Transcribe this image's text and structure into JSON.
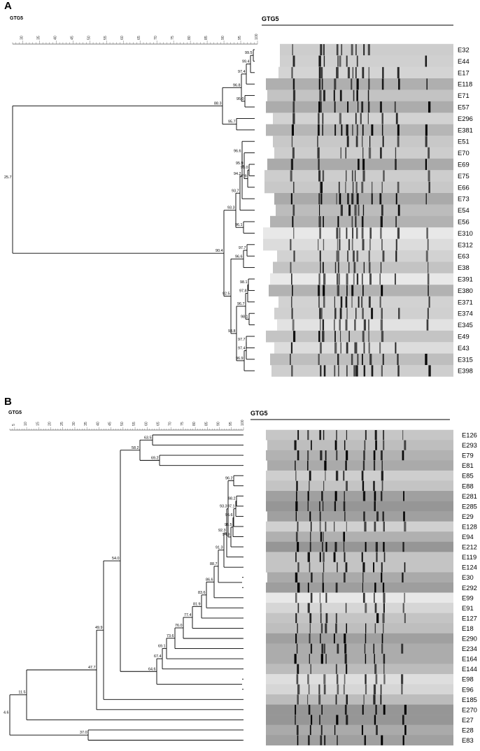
{
  "panels": [
    {
      "id": "A",
      "label": "A",
      "dendro_title": "GTG5",
      "gel_title": "GTG5",
      "scale_ticks": [
        "30",
        "35",
        "40",
        "45",
        "50",
        "55",
        "60",
        "65",
        "70",
        "75",
        "80",
        "85",
        "90",
        "95",
        "100"
      ],
      "isolates": [
        "E32",
        "E44",
        "E17",
        "E118",
        "E71",
        "E57",
        "E296",
        "E381",
        "E51",
        "E70",
        "E69",
        "E75",
        "E66",
        "E73",
        "E54",
        "E56",
        "E310",
        "E312",
        "E63",
        "E38",
        "E391",
        "E380",
        "E371",
        "E374",
        "E345",
        "E49",
        "E43",
        "E315",
        "E398"
      ],
      "node_values": [
        "99.5",
        "99.4",
        "97.4",
        "96.8",
        "95.0",
        "88.3",
        "95.7",
        "96.6",
        "95.9",
        "98.0",
        "97.9",
        "94.2",
        "93.7",
        "96.1",
        "93.3",
        "97.7",
        "96.6",
        "98.1",
        "97.8",
        "96.7",
        "98.1",
        "93.8",
        "97.7",
        "97.4",
        "96.9",
        "92.5",
        "90.4",
        "25.7"
      ]
    },
    {
      "id": "B",
      "label": "B",
      "dendro_title": "GTG5",
      "gel_title": "GTG5",
      "scale_ticks": [
        "5",
        "10",
        "15",
        "20",
        "25",
        "30",
        "35",
        "40",
        "45",
        "50",
        "55",
        "60",
        "65",
        "70",
        "75",
        "80",
        "85",
        "90",
        "95",
        "100"
      ],
      "isolates": [
        "E126",
        "E293",
        "E79",
        "E81",
        "E85",
        "E88",
        "E281",
        "E285",
        "E29",
        "E128",
        "E94",
        "E212",
        "E119",
        "E124",
        "E30",
        "E292",
        "E99",
        "E91",
        "E127",
        "E18",
        "E290",
        "E234",
        "E164",
        "E144",
        "E98",
        "E96",
        "E185",
        "E270",
        "E27",
        "E28",
        "E83"
      ],
      "node_values": [
        "63.5",
        "69.2",
        "58.2",
        "96.2",
        "98.2",
        "97.1",
        "95.6",
        "96.5",
        "94.9",
        "93.3",
        "92.3",
        "91.3",
        "88.7",
        "86.6",
        "83.6",
        "81.9",
        "77.4",
        "76.0",
        "73.6",
        "69.1",
        "67.4",
        "64.6",
        "54.0",
        "49.9",
        "47.7",
        "11.5",
        "37.0",
        "4.6"
      ]
    }
  ]
}
